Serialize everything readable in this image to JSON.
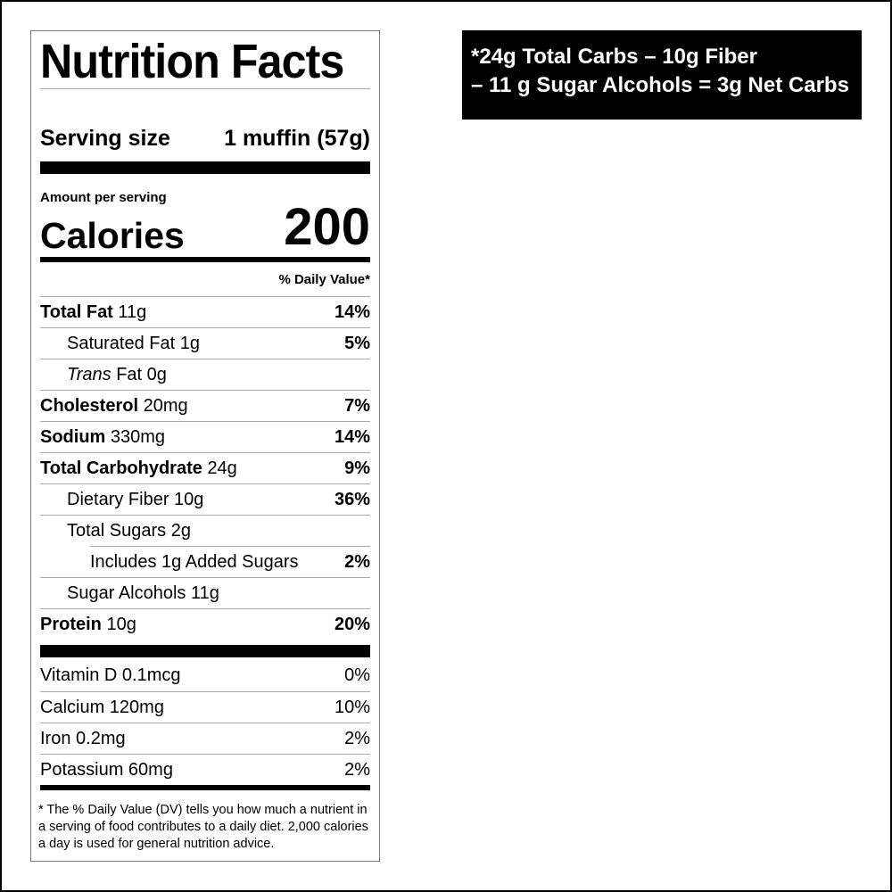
{
  "label": {
    "title": "Nutrition Facts",
    "serving_label": "Serving size",
    "serving_value": "1 muffin (57g)",
    "amount_per_serving": "Amount per serving",
    "calories_label": "Calories",
    "calories_value": "200",
    "daily_value_header": "% Daily Value*",
    "nutrients": [
      {
        "name": "Total Fat",
        "amount": "11g",
        "dv": "14%",
        "bold": true,
        "indent": 0
      },
      {
        "name": "Saturated Fat",
        "amount": "1g",
        "dv": "5%",
        "bold": false,
        "indent": 1
      },
      {
        "name": "Trans",
        "name_suffix": "Fat",
        "amount": "0g",
        "dv": "",
        "bold": false,
        "indent": 1
      },
      {
        "name": "Cholesterol",
        "amount": "20mg",
        "dv": "7%",
        "bold": true,
        "indent": 0
      },
      {
        "name": "Sodium",
        "amount": "330mg",
        "dv": "14%",
        "bold": true,
        "indent": 0
      },
      {
        "name": "Total Carbohydrate",
        "amount": "24g",
        "dv": "9%",
        "bold": true,
        "indent": 0
      },
      {
        "name": "Dietary Fiber",
        "amount": "10g",
        "dv": "36%",
        "bold": false,
        "indent": 1
      },
      {
        "name": "Total Sugars",
        "amount": "2g",
        "dv": "",
        "bold": false,
        "indent": 1
      },
      {
        "name": "Includes 1g Added Sugars",
        "amount": "",
        "dv": "2%",
        "bold": false,
        "indent": 2
      },
      {
        "name": "Sugar Alcohols",
        "amount": "11g",
        "dv": "",
        "bold": false,
        "indent": 1
      },
      {
        "name": "Protein",
        "amount": "10g",
        "dv": "20%",
        "bold": true,
        "indent": 0
      }
    ],
    "vitamins": [
      {
        "name": "Vitamin D 0.1mcg",
        "dv": "0%"
      },
      {
        "name": "Calcium 120mg",
        "dv": "10%"
      },
      {
        "name": "Iron 0.2mg",
        "dv": "2%"
      },
      {
        "name": "Potassium 60mg",
        "dv": "2%"
      }
    ],
    "footnote": "* The % Daily Value (DV) tells you how much a nutrient in a serving of food contributes to a daily diet. 2,000 calories a day is used for general nutrition advice."
  },
  "net_carbs": {
    "line1": "*24g Total Carbs – 10g Fiber",
    "line2": "– 11 g Sugar Alcohols = 3g Net Carbs"
  }
}
